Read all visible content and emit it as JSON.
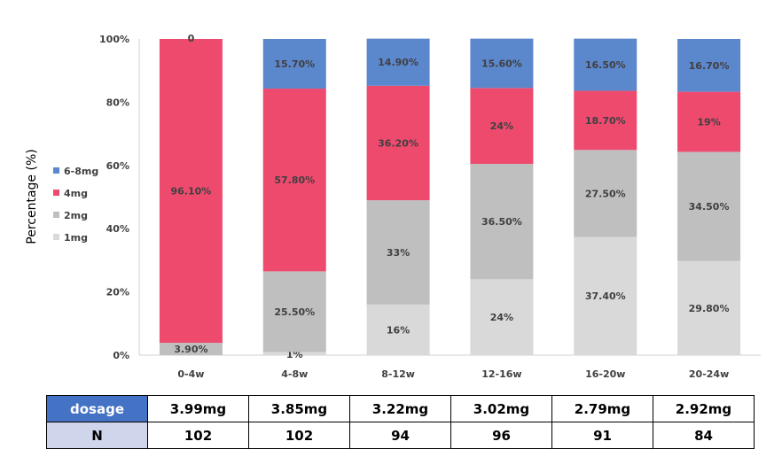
{
  "chart_data": {
    "type": "bar",
    "stacked": true,
    "ylabel": "Percentage  (%)",
    "ylim": [
      0,
      100
    ],
    "yticks": [
      "0%",
      "20%",
      "40%",
      "60%",
      "80%",
      "100%"
    ],
    "ytick_values": [
      0,
      20,
      40,
      60,
      80,
      100
    ],
    "categories": [
      "0-4w",
      "4-8w",
      "8-12w",
      "12-16w",
      "16-20w",
      "20-24w"
    ],
    "legend_position": "left",
    "series": [
      {
        "name": "1mg",
        "color": "#d9d9d9",
        "values": [
          0,
          1,
          16,
          24,
          37.4,
          29.8
        ],
        "labels": [
          "",
          "1%",
          "16%",
          "24%",
          "37.40%",
          "29.80%"
        ]
      },
      {
        "name": "2mg",
        "color": "#bfbfbf",
        "values": [
          3.9,
          25.5,
          33,
          36.5,
          27.5,
          34.5
        ],
        "labels": [
          "3.90%",
          "25.50%",
          "33%",
          "36.50%",
          "27.50%",
          "34.50%"
        ]
      },
      {
        "name": "4mg",
        "color": "#ee4a6e",
        "values": [
          96.1,
          57.8,
          36.2,
          24,
          18.7,
          19
        ],
        "labels": [
          "96.10%",
          "57.80%",
          "36.20%",
          "24%",
          "18.70%",
          "19%"
        ]
      },
      {
        "name": "6-8mg",
        "color": "#5b87cc",
        "values": [
          0,
          15.7,
          14.9,
          15.6,
          16.5,
          16.7
        ],
        "labels": [
          "0",
          "15.70%",
          "14.90%",
          "15.60%",
          "16.50%",
          "16.70%"
        ]
      }
    ]
  },
  "table": {
    "rows": [
      {
        "header": "dosage",
        "values": [
          "3.99mg",
          "3.85mg",
          "3.22mg",
          "3.02mg",
          "2.79mg",
          "2.92mg"
        ]
      },
      {
        "header": "N",
        "values": [
          "102",
          "102",
          "94",
          "96",
          "91",
          "84"
        ]
      }
    ]
  }
}
